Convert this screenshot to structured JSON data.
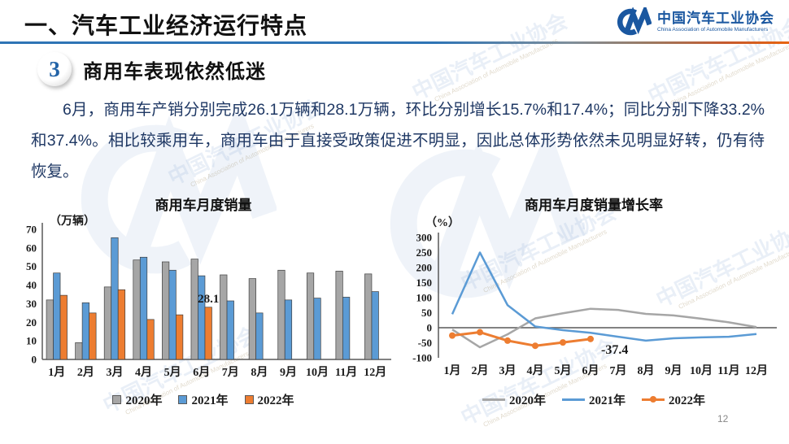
{
  "header": {
    "title": "一、汽车工业经济运行特点",
    "logo": {
      "name_cn": "中国汽车工业协会",
      "name_en": "China Association of Automobile Manufacturers"
    }
  },
  "section": {
    "number": "3",
    "heading": "商用车表现依然低迷"
  },
  "body_text": "6月，商用车产销分别完成26.1万辆和28.1万辆，环比分别增长15.7%和17.4%；同比分别下降33.2%和37.4%。相比较乘用车，商用车由于直接受政策促进不明显，因此总体形势依然未见明显好转，仍有待恢复。",
  "page_number": "12",
  "colors": {
    "series_2020": "#A6A6A6",
    "series_2021": "#5B9BD5",
    "series_2022": "#ED7D31",
    "body_text": "#1F3864",
    "logo_blue": "#1A57A0",
    "annotation_red": "#E00000"
  },
  "watermark": {
    "line1": "中国汽车工业协会",
    "line2": "China Association of Automobile Manufacturers"
  },
  "chart_data": [
    {
      "type": "bar",
      "title": "商用车月度销量",
      "ylabel": "（万辆）",
      "categories": [
        "1月",
        "2月",
        "3月",
        "4月",
        "5月",
        "6月",
        "7月",
        "8月",
        "9月",
        "10月",
        "11月",
        "12月"
      ],
      "series": [
        {
          "name": "2020年",
          "color": "#A6A6A6",
          "values": [
            32,
            9,
            39,
            53.5,
            52.5,
            54,
            45.5,
            43.5,
            48,
            46.5,
            47.5,
            46
          ]
        },
        {
          "name": "2021年",
          "color": "#5B9BD5",
          "values": [
            46.5,
            30.5,
            65.5,
            55,
            48,
            45,
            31.5,
            25,
            32,
            33,
            33.5,
            36.5
          ]
        },
        {
          "name": "2022年",
          "color": "#ED7D31",
          "values": [
            34.5,
            25,
            37.5,
            21.5,
            24,
            28.1
          ]
        }
      ],
      "ylim": [
        0,
        70
      ],
      "ytick_step": 10,
      "grid": false,
      "legend_position": "bottom",
      "annotation": {
        "text": "28.1",
        "series_index": 2,
        "category_index": 5,
        "color": "#1a1a1a"
      }
    },
    {
      "type": "line",
      "title": "商用车月度销量增长率",
      "ylabel": "（%）",
      "categories": [
        "1月",
        "2月",
        "3月",
        "4月",
        "5月",
        "6月",
        "7月",
        "8月",
        "9月",
        "10月",
        "11月",
        "12月"
      ],
      "series": [
        {
          "name": "2020年",
          "color": "#A6A6A6",
          "markers": false,
          "values": [
            -6,
            -65,
            -22,
            31,
            48,
            63,
            59,
            46,
            41,
            30,
            18,
            2
          ]
        },
        {
          "name": "2021年",
          "color": "#5B9BD5",
          "markers": false,
          "values": [
            45,
            250,
            75,
            4,
            -8,
            -17,
            -30,
            -43,
            -35,
            -32,
            -30,
            -21
          ]
        },
        {
          "name": "2022年",
          "color": "#ED7D31",
          "markers": true,
          "values": [
            -26,
            -15,
            -43,
            -60,
            -49,
            -37.4
          ]
        }
      ],
      "ylim": [
        -100,
        300
      ],
      "ytick_step": 50,
      "grid": false,
      "legend_position": "bottom",
      "annotation": {
        "text": "-37.4",
        "series_index": 2,
        "category_index": 5,
        "color": "#E00000"
      }
    }
  ]
}
